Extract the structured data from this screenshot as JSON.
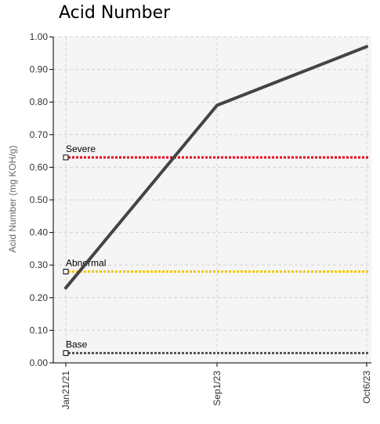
{
  "chart_data": {
    "type": "line",
    "title": "Acid Number",
    "xlabel": "",
    "ylabel": "Acid Number (mg KOH/g)",
    "categories": [
      "Jan21/21",
      "Sep1/23",
      "Oct6/23"
    ],
    "series": [
      {
        "values": [
          0.23,
          0.79,
          0.97
        ],
        "color": "#444444"
      }
    ],
    "thresholds": [
      {
        "name": "Severe",
        "value": 0.63,
        "color": "#e8001c"
      },
      {
        "name": "Abnormal",
        "value": 0.28,
        "color": "#f2c800"
      },
      {
        "name": "Base",
        "value": 0.03,
        "color": "#555555"
      }
    ],
    "y_ticks": [
      "0.00",
      "0.10",
      "0.20",
      "0.30",
      "0.40",
      "0.50",
      "0.60",
      "0.70",
      "0.80",
      "0.90",
      "1.00"
    ],
    "ylim": [
      0,
      1
    ],
    "grid": true,
    "legend": "none"
  }
}
